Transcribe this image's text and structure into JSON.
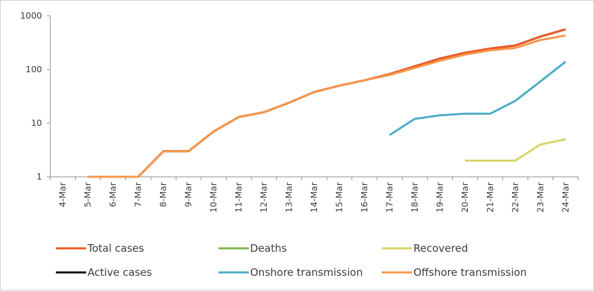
{
  "chart_data": {
    "type": "line",
    "title": "",
    "xlabel": "",
    "ylabel": "",
    "yscale": "log",
    "ylim": [
      1,
      1000
    ],
    "grid": false,
    "legend_position": "bottom",
    "y_ticks": [
      "1",
      "10",
      "100",
      "1000"
    ],
    "categories": [
      "4-Mar",
      "5-Mar",
      "6-Mar",
      "7-Mar",
      "8-Mar",
      "9-Mar",
      "10-Mar",
      "11-Mar",
      "12-Mar",
      "13-Mar",
      "14-Mar",
      "15-Mar",
      "16-Mar",
      "17-Mar",
      "18-Mar",
      "19-Mar",
      "20-Mar",
      "21-Mar",
      "22-Mar",
      "23-Mar",
      "24-Mar"
    ],
    "series": [
      {
        "name": "Total cases",
        "color": "#ed5a24",
        "values": [
          null,
          1,
          1,
          1,
          3,
          3,
          7,
          13,
          16,
          24,
          38,
          50,
          63,
          82,
          115,
          160,
          205,
          245,
          280,
          410,
          560
        ]
      },
      {
        "name": "Deaths",
        "color": "#7fb64b",
        "values": [
          null,
          null,
          null,
          null,
          null,
          null,
          null,
          null,
          null,
          null,
          null,
          null,
          null,
          null,
          null,
          null,
          null,
          null,
          null,
          null,
          null
        ]
      },
      {
        "name": "Recovered",
        "color": "#d8d36a",
        "values": [
          null,
          null,
          null,
          null,
          null,
          null,
          null,
          null,
          null,
          null,
          null,
          null,
          null,
          null,
          null,
          null,
          2,
          2,
          2,
          4,
          5
        ]
      },
      {
        "name": "Active cases",
        "color": "#111111",
        "values": [
          null,
          1,
          1,
          1,
          3,
          3,
          7,
          13,
          16,
          24,
          38,
          50,
          63,
          82,
          115,
          160,
          205,
          245,
          280,
          410,
          560
        ]
      },
      {
        "name": "Onshore transmission",
        "color": "#4bacc6",
        "values": [
          null,
          null,
          null,
          null,
          null,
          null,
          null,
          null,
          null,
          null,
          null,
          null,
          null,
          6,
          12,
          14,
          15,
          15,
          26,
          60,
          140
        ]
      },
      {
        "name": "Offshore transmission",
        "color": "#f7964a",
        "values": [
          null,
          1,
          1,
          1,
          3,
          3,
          7,
          13,
          16,
          24,
          38,
          50,
          63,
          79,
          107,
          145,
          190,
          228,
          252,
          355,
          430
        ]
      }
    ],
    "legend": [
      {
        "label": "Total cases",
        "color": "#ed5a24"
      },
      {
        "label": "Deaths",
        "color": "#7fb64b"
      },
      {
        "label": "Recovered",
        "color": "#d8d36a"
      },
      {
        "label": "Active cases",
        "color": "#111111"
      },
      {
        "label": "Onshore transmission",
        "color": "#4bacc6"
      },
      {
        "label": "Offshore transmission",
        "color": "#f7964a"
      }
    ]
  }
}
